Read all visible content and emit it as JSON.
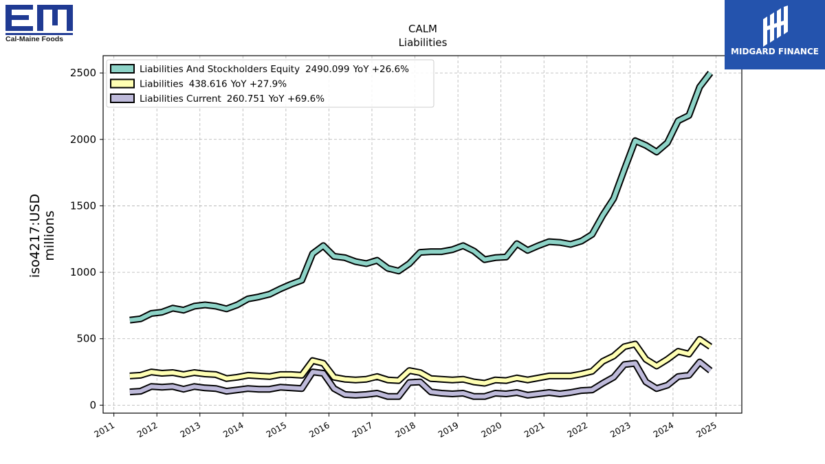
{
  "logos": {
    "left_text": "Cal-Maine Foods",
    "right_text": "MIDGARD FINANCE",
    "brand_blue": "#1f3a93",
    "finance_blue": "#2453ad"
  },
  "chart_data": {
    "type": "line",
    "title": "CALM",
    "subtitle": "Liabilities",
    "ylabel_line1": "iso4217:USD",
    "ylabel_line2": "millions",
    "xlabel": "",
    "xlim": [
      2010.75,
      2025.6
    ],
    "ylim": [
      -60,
      2630
    ],
    "yticks": [
      0,
      500,
      1000,
      1500,
      2000,
      2500
    ],
    "xticks": [
      "2011",
      "2012",
      "2013",
      "2014",
      "2015",
      "2016",
      "2017",
      "2018",
      "2019",
      "2020",
      "2021",
      "2022",
      "2023",
      "2024",
      "2025"
    ],
    "grid": true,
    "legend_position": "top-left",
    "x": [
      2011.37,
      2011.62,
      2011.87,
      2012.12,
      2012.37,
      2012.62,
      2012.87,
      2013.12,
      2013.37,
      2013.62,
      2013.87,
      2014.12,
      2014.37,
      2014.62,
      2014.87,
      2015.12,
      2015.37,
      2015.62,
      2015.87,
      2016.12,
      2016.37,
      2016.62,
      2016.87,
      2017.12,
      2017.37,
      2017.62,
      2017.87,
      2018.12,
      2018.37,
      2018.62,
      2018.87,
      2019.12,
      2019.37,
      2019.62,
      2019.87,
      2020.12,
      2020.37,
      2020.62,
      2020.87,
      2021.12,
      2021.37,
      2021.62,
      2021.87,
      2022.12,
      2022.37,
      2022.62,
      2022.87,
      2023.12,
      2023.37,
      2023.62,
      2023.87,
      2024.12,
      2024.37,
      2024.62,
      2024.87
    ],
    "series": [
      {
        "name": "Liabilities And Stockholders Equity",
        "label_value": "2490.099",
        "label_yoy": "YoY +26.6%",
        "color": "#8dd3c7",
        "values": [
          640,
          650,
          690,
          700,
          730,
          715,
          745,
          755,
          745,
          725,
          755,
          800,
          815,
          835,
          875,
          910,
          940,
          1140,
          1200,
          1120,
          1110,
          1080,
          1065,
          1090,
          1030,
          1010,
          1065,
          1150,
          1155,
          1155,
          1170,
          1200,
          1160,
          1095,
          1110,
          1115,
          1215,
          1165,
          1200,
          1230,
          1225,
          1210,
          1235,
          1285,
          1430,
          1555,
          1775,
          1990,
          1955,
          1905,
          1975,
          2140,
          2180,
          2395,
          2500
        ]
      },
      {
        "name": "Liabilities",
        "label_value": "438.616",
        "label_yoy": "YoY +27.9%",
        "color": "#ffffb3",
        "values": [
          220,
          225,
          250,
          240,
          245,
          230,
          245,
          235,
          230,
          200,
          210,
          225,
          220,
          215,
          230,
          230,
          225,
          335,
          315,
          210,
          195,
          190,
          195,
          215,
          190,
          185,
          260,
          245,
          200,
          195,
          190,
          195,
          175,
          165,
          190,
          185,
          205,
          190,
          205,
          220,
          220,
          220,
          235,
          255,
          330,
          370,
          440,
          460,
          345,
          295,
          345,
          405,
          385,
          495,
          440
        ]
      },
      {
        "name": "Liabilities Current",
        "label_value": "260.751",
        "label_yoy": "YoY +69.6%",
        "color": "#bebada",
        "values": [
          100,
          105,
          140,
          135,
          140,
          120,
          140,
          130,
          125,
          105,
          115,
          125,
          120,
          120,
          135,
          130,
          125,
          250,
          240,
          125,
          80,
          75,
          80,
          90,
          65,
          65,
          170,
          175,
          100,
          90,
          85,
          90,
          65,
          65,
          90,
          85,
          95,
          75,
          85,
          95,
          85,
          95,
          110,
          115,
          165,
          210,
          305,
          315,
          175,
          125,
          150,
          215,
          225,
          325,
          260
        ]
      }
    ]
  }
}
